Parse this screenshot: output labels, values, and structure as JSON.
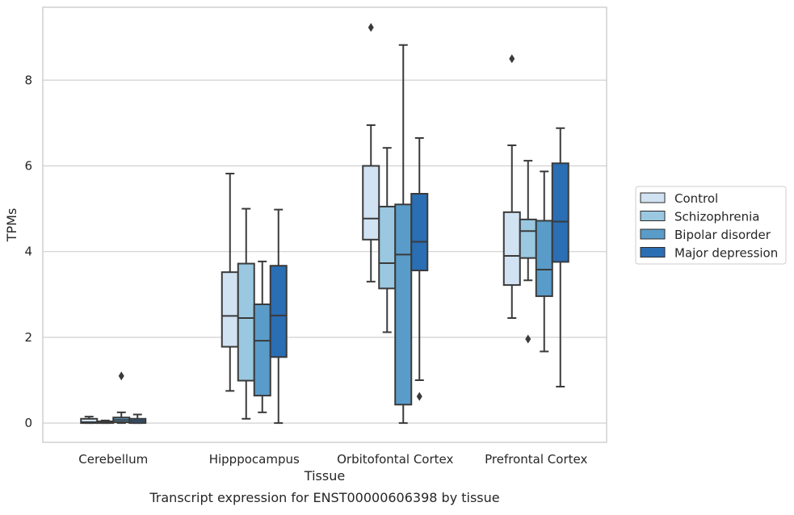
{
  "chart_data": {
    "type": "box",
    "title": "",
    "caption": "Transcript expression for ENST00000606398 by tissue",
    "xlabel": "Tissue",
    "ylabel": "TPMs",
    "ylim": [
      -0.45,
      9.7
    ],
    "yticks": [
      0,
      2,
      4,
      6,
      8
    ],
    "grid": "horizontal",
    "legend_position": "right",
    "categories": [
      "Cerebellum",
      "Hipppocampus",
      "Orbitofontal Cortex",
      "Prefrontal Cortex"
    ],
    "series": [
      {
        "name": "Control",
        "color": "#d1e2f2",
        "boxes": [
          {
            "whislo": 0.0,
            "q1": 0.0,
            "med": 0.02,
            "q3": 0.1,
            "whishi": 0.15,
            "fliers": []
          },
          {
            "whislo": 0.75,
            "q1": 1.78,
            "med": 2.5,
            "q3": 3.52,
            "whishi": 5.82,
            "fliers": []
          },
          {
            "whislo": 3.3,
            "q1": 4.28,
            "med": 4.77,
            "q3": 6.0,
            "whishi": 6.95,
            "fliers": [
              9.23
            ]
          },
          {
            "whislo": 2.45,
            "q1": 3.22,
            "med": 3.9,
            "q3": 4.92,
            "whishi": 6.48,
            "fliers": [
              8.5
            ]
          }
        ]
      },
      {
        "name": "Schizophrenia",
        "color": "#9ac8e0",
        "boxes": [
          {
            "whislo": 0.0,
            "q1": 0.0,
            "med": 0.02,
            "q3": 0.04,
            "whishi": 0.06,
            "fliers": []
          },
          {
            "whislo": 0.1,
            "q1": 0.99,
            "med": 2.45,
            "q3": 3.72,
            "whishi": 5.0,
            "fliers": []
          },
          {
            "whislo": 2.12,
            "q1": 3.14,
            "med": 3.73,
            "q3": 5.05,
            "whishi": 6.42,
            "fliers": []
          },
          {
            "whislo": 3.33,
            "q1": 3.85,
            "med": 4.48,
            "q3": 4.75,
            "whishi": 6.12,
            "fliers": [
              1.96
            ]
          }
        ]
      },
      {
        "name": "Bipolar disorder",
        "color": "#5a9cc9",
        "boxes": [
          {
            "whislo": 0.0,
            "q1": 0.02,
            "med": 0.07,
            "q3": 0.13,
            "whishi": 0.25,
            "fliers": [
              1.1
            ]
          },
          {
            "whislo": 0.25,
            "q1": 0.64,
            "med": 1.92,
            "q3": 2.77,
            "whishi": 3.77,
            "fliers": []
          },
          {
            "whislo": 0.0,
            "q1": 0.43,
            "med": 3.93,
            "q3": 5.1,
            "whishi": 8.82,
            "fliers": []
          },
          {
            "whislo": 1.67,
            "q1": 2.96,
            "med": 3.58,
            "q3": 4.72,
            "whishi": 5.87,
            "fliers": []
          }
        ]
      },
      {
        "name": "Major depression",
        "color": "#2a6eb4",
        "boxes": [
          {
            "whislo": 0.0,
            "q1": 0.0,
            "med": 0.05,
            "q3": 0.1,
            "whishi": 0.2,
            "fliers": []
          },
          {
            "whislo": 0.0,
            "q1": 1.54,
            "med": 2.51,
            "q3": 3.67,
            "whishi": 4.98,
            "fliers": []
          },
          {
            "whislo": 1.0,
            "q1": 3.56,
            "med": 4.23,
            "q3": 5.35,
            "whishi": 6.65,
            "fliers": [
              0.62
            ]
          },
          {
            "whislo": 0.85,
            "q1": 3.76,
            "med": 4.7,
            "q3": 6.06,
            "whishi": 6.88,
            "fliers": []
          }
        ]
      }
    ]
  }
}
